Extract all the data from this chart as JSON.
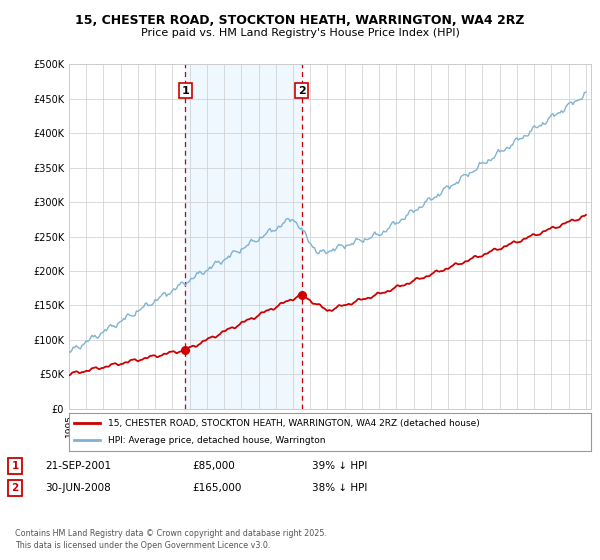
{
  "title": "15, CHESTER ROAD, STOCKTON HEATH, WARRINGTON, WA4 2RZ",
  "subtitle": "Price paid vs. HM Land Registry's House Price Index (HPI)",
  "sale1_date_label": "21-SEP-2001",
  "sale1_price": 85000,
  "sale1_pct": "39% ↓ HPI",
  "sale2_date_label": "30-JUN-2008",
  "sale2_price": 165000,
  "sale2_pct": "38% ↓ HPI",
  "label1": "1",
  "label2": "2",
  "legend_line1": "15, CHESTER ROAD, STOCKTON HEATH, WARRINGTON, WA4 2RZ (detached house)",
  "legend_line2": "HPI: Average price, detached house, Warrington",
  "footnote1": "Contains HM Land Registry data © Crown copyright and database right 2025.",
  "footnote2": "This data is licensed under the Open Government Licence v3.0.",
  "ylim": [
    0,
    500000
  ],
  "yticks": [
    0,
    50000,
    100000,
    150000,
    200000,
    250000,
    300000,
    350000,
    400000,
    450000,
    500000
  ],
  "color_red": "#cc0000",
  "color_blue": "#7fb3d3",
  "color_shade": "#ddeeff",
  "shade_alpha": 0.45,
  "sale1_year": 2001.75,
  "sale2_year": 2008.5,
  "background_color": "#ffffff"
}
